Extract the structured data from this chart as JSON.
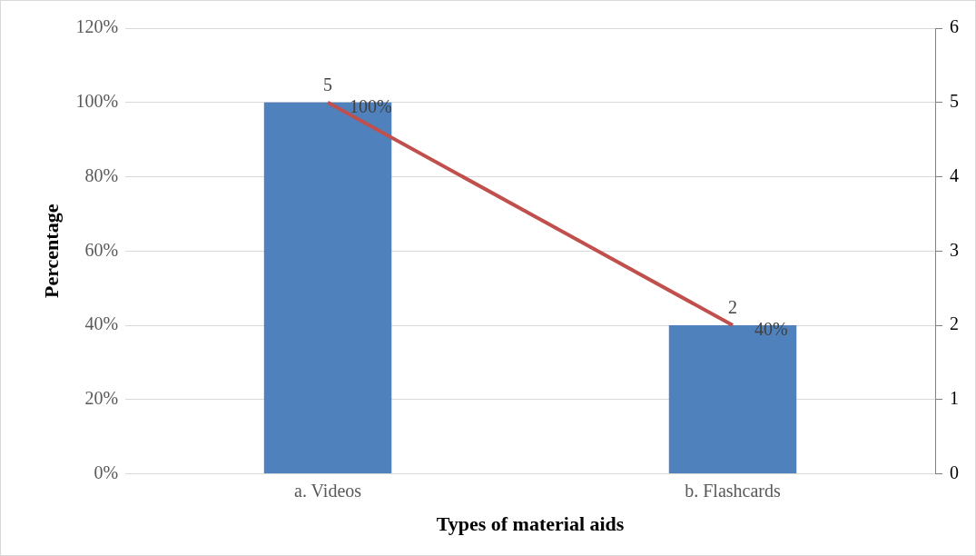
{
  "chart_data": {
    "type": "bar",
    "xlabel": "Types of material aids",
    "ylabel": "Percentage",
    "categories": [
      "a. Videos",
      "b. Flashcards"
    ],
    "series": [
      {
        "color": "#4f81bd",
        "values": [
          100,
          40
        ],
        "value_labels": [
          "100%",
          "40%"
        ]
      },
      {
        "type": "line",
        "axis": "y2",
        "color": "#c0504d",
        "values": [
          5,
          2
        ],
        "value_labels": [
          "5",
          "2"
        ]
      }
    ],
    "ylim": [
      0,
      120
    ],
    "yticks": [
      {
        "value": 0,
        "label": "0%"
      },
      {
        "value": 20,
        "label": "20%"
      },
      {
        "value": 40,
        "label": "40%"
      },
      {
        "value": 60,
        "label": "60%"
      },
      {
        "value": 80,
        "label": "80%"
      },
      {
        "value": 100,
        "label": "100%"
      },
      {
        "value": 120,
        "label": "120%"
      }
    ],
    "y2lim": [
      0,
      6
    ],
    "y2ticks": [
      0,
      1,
      2,
      3,
      4,
      5,
      6
    ],
    "grid": "y",
    "legend": false,
    "marker": "none",
    "line_style": "solid"
  }
}
